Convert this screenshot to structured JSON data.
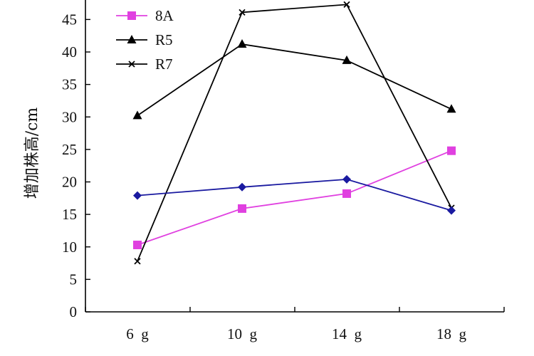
{
  "chart_data": {
    "type": "line",
    "title": "",
    "xlabel": "",
    "ylabel": "增加株高/cm",
    "categories": [
      "6  g",
      "10  g",
      "14  g",
      "18  g"
    ],
    "ylim": [
      0,
      48
    ],
    "yticks": [
      0,
      5,
      10,
      15,
      20,
      25,
      30,
      35,
      40,
      45
    ],
    "legend_position": "top-left",
    "series": [
      {
        "name": "8A",
        "values": [
          10.3,
          15.9,
          18.2,
          24.8
        ],
        "color": "#e040e0",
        "marker": "square",
        "in_legend": true
      },
      {
        "name": "R5",
        "values": [
          30.2,
          41.2,
          38.7,
          31.2
        ],
        "color": "#000000",
        "marker": "triangle",
        "in_legend": true
      },
      {
        "name": "R7",
        "values": [
          7.8,
          46.1,
          47.3,
          16.0
        ],
        "color": "#000000",
        "marker": "x",
        "in_legend": true
      },
      {
        "name": "",
        "values": [
          17.9,
          19.2,
          20.4,
          15.6
        ],
        "color": "#1a1aa0",
        "marker": "diamond",
        "in_legend": false
      }
    ]
  }
}
